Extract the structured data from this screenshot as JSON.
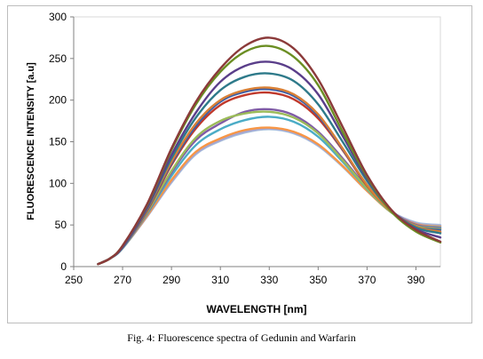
{
  "chart_data": {
    "type": "line",
    "xlabel": "WAVELENGTH [nm]",
    "ylabel": "FLUORESCENCE INTENSITY [a.u]",
    "xlim": [
      250,
      400
    ],
    "ylim": [
      0,
      300
    ],
    "xticks": [
      250,
      270,
      290,
      310,
      330,
      350,
      370,
      390
    ],
    "yticks": [
      0,
      50,
      100,
      150,
      200,
      250,
      300
    ],
    "grid": false,
    "legend": "none",
    "x": [
      260,
      265,
      270,
      280,
      290,
      300,
      310,
      320,
      330,
      340,
      350,
      360,
      370,
      380,
      390,
      400
    ],
    "series": [
      {
        "color": "#8B3A3A",
        "values": [
          3,
          10,
          25,
          75,
          142,
          198,
          238,
          265,
          275,
          262,
          225,
          168,
          110,
          68,
          44,
          30
        ]
      },
      {
        "color": "#6B8E23",
        "values": [
          3,
          10,
          25,
          74,
          140,
          195,
          234,
          258,
          265,
          252,
          218,
          162,
          108,
          66,
          42,
          29
        ]
      },
      {
        "color": "#5A3E8A",
        "values": [
          3,
          10,
          24,
          71,
          134,
          185,
          222,
          241,
          246,
          236,
          207,
          157,
          106,
          67,
          45,
          35
        ]
      },
      {
        "color": "#2E7A8A",
        "values": [
          3,
          10,
          24,
          70,
          130,
          179,
          212,
          228,
          232,
          223,
          195,
          150,
          103,
          67,
          47,
          40
        ]
      },
      {
        "color": "#D98036",
        "values": [
          3,
          10,
          24,
          69,
          126,
          172,
          200,
          212,
          215,
          207,
          183,
          142,
          98,
          66,
          48,
          42
        ]
      },
      {
        "color": "#3B5FA8",
        "values": [
          3,
          10,
          23,
          68,
          124,
          169,
          198,
          210,
          213,
          205,
          181,
          141,
          98,
          66,
          48,
          44
        ]
      },
      {
        "color": "#C0392B",
        "values": [
          3,
          10,
          23,
          67,
          122,
          166,
          194,
          206,
          209,
          201,
          178,
          140,
          97,
          66,
          48,
          41
        ]
      },
      {
        "color": "#9BBB59",
        "values": [
          3,
          10,
          23,
          65,
          115,
          155,
          175,
          184,
          186,
          179,
          160,
          128,
          94,
          65,
          49,
          45
        ]
      },
      {
        "color": "#7F5BA6",
        "values": [
          3,
          10,
          23,
          64,
          113,
          152,
          172,
          186,
          189,
          182,
          162,
          130,
          95,
          66,
          50,
          46
        ]
      },
      {
        "color": "#4BACC6",
        "values": [
          3,
          10,
          22,
          63,
          109,
          146,
          165,
          176,
          180,
          174,
          156,
          126,
          93,
          65,
          50,
          47
        ]
      },
      {
        "color": "#F79646",
        "values": [
          3,
          10,
          22,
          61,
          104,
          138,
          154,
          164,
          167,
          162,
          147,
          121,
          91,
          65,
          51,
          48
        ]
      },
      {
        "color": "#A6A6D0",
        "values": [
          3,
          10,
          22,
          60,
          102,
          136,
          152,
          162,
          166,
          161,
          146,
          121,
          91,
          66,
          52,
          49
        ]
      },
      {
        "color": "#A9C4E0",
        "values": [
          3,
          10,
          22,
          60,
          101,
          135,
          151,
          161,
          165,
          160,
          145,
          120,
          91,
          66,
          53,
          50
        ]
      }
    ]
  },
  "caption": "Fig. 4: Fluorescence spectra of Gedunin and Warfarin"
}
